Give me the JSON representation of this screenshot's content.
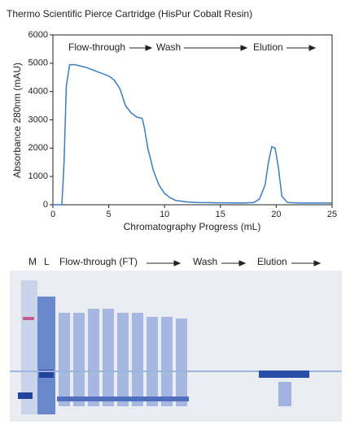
{
  "chart_data": {
    "type": "line",
    "title": "Thermo Scientific Pierce Cartridge (HisPur Cobalt Resin)",
    "x_label": "Chromatography Progress (mL)",
    "y_label": "Absorbance 280nm (mAU)",
    "annotations": [
      "Flow-through",
      "Wash",
      "Elution"
    ],
    "x": [
      0,
      0.8,
      1.0,
      1.2,
      1.5,
      2,
      3,
      4,
      5,
      5.5,
      6,
      6.5,
      7,
      7.5,
      8,
      8.2,
      8.5,
      9,
      9.5,
      10,
      10.5,
      11,
      12,
      13,
      15,
      17,
      18,
      18.5,
      19,
      19.3,
      19.6,
      19.9,
      20.2,
      20.5,
      21,
      22,
      25
    ],
    "values": [
      0,
      0,
      1500,
      4200,
      4950,
      4950,
      4850,
      4700,
      4550,
      4400,
      4100,
      3500,
      3250,
      3100,
      3050,
      2700,
      2000,
      1200,
      700,
      400,
      250,
      150,
      100,
      80,
      70,
      60,
      80,
      200,
      700,
      1500,
      2050,
      2000,
      1300,
      300,
      80,
      60,
      60
    ],
    "color": "#3a7cc0",
    "xlim": [
      0,
      25
    ],
    "xticks": [
      0,
      5,
      10,
      15,
      20,
      25
    ],
    "ylim": [
      0,
      6000
    ],
    "yticks": [
      0,
      1000,
      2000,
      3000,
      4000,
      5000,
      6000
    ],
    "grid": false
  },
  "gel": {
    "labels": [
      "M",
      "L",
      "Flow-through (FT)",
      "Wash",
      "Elution"
    ]
  }
}
